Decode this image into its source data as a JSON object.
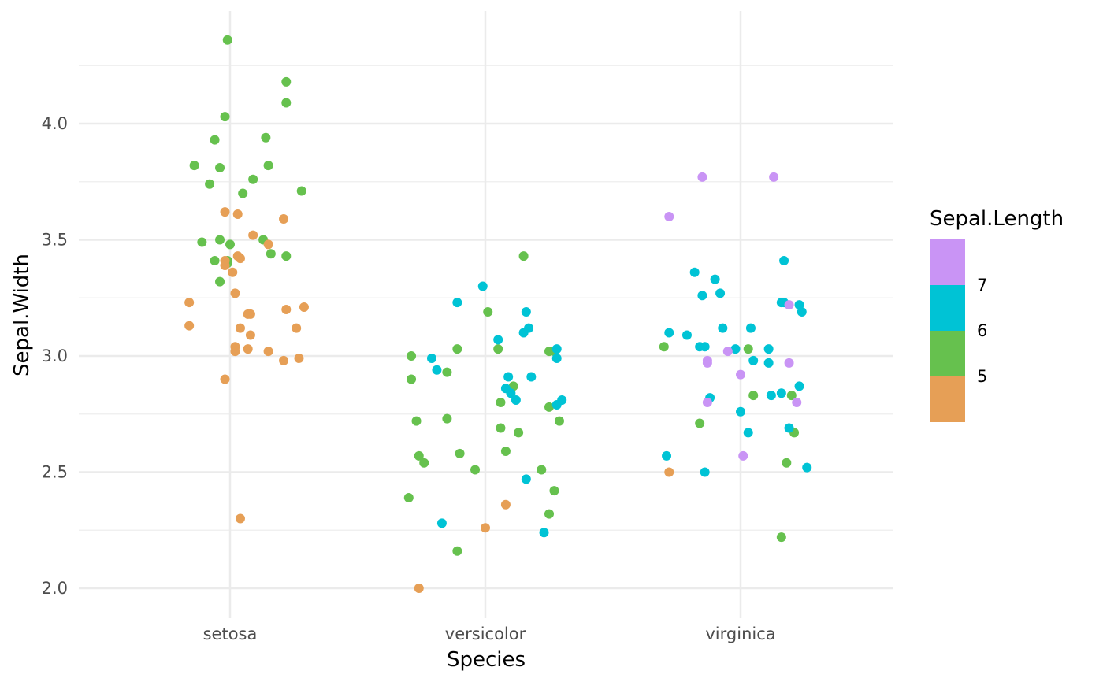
{
  "chart_data": {
    "type": "scatter",
    "jitter": true,
    "title": "",
    "xlabel": "Species",
    "ylabel": "Sepal.Width",
    "categories": [
      "setosa",
      "versicolor",
      "virginica"
    ],
    "ylim": [
      1.85,
      4.42
    ],
    "yticks": [
      2.0,
      2.5,
      3.0,
      3.5,
      4.0
    ],
    "ytick_labels": [
      "2.0",
      "2.5",
      "3.0",
      "3.5",
      "4.0"
    ],
    "grid": true,
    "theme": "minimal",
    "color": {
      "variable": "Sepal.Length",
      "legend_title": "Sepal.Length",
      "legend_position": "right",
      "bins": [
        {
          "label": "",
          "color": "#E69F56"
        },
        {
          "label": "5",
          "color": "#66C14E"
        },
        {
          "label": "6",
          "color": "#00C3D5"
        },
        {
          "label": "7",
          "color": "#C994F5"
        }
      ]
    },
    "series": [
      {
        "category": "setosa",
        "points": [
          {
            "x": 0.86,
            "y": 3.82,
            "c": "5"
          },
          {
            "x": 0.89,
            "y": 3.49,
            "c": "5"
          },
          {
            "x": 0.92,
            "y": 3.74,
            "c": "5"
          },
          {
            "x": 0.94,
            "y": 3.93,
            "c": "5"
          },
          {
            "x": 0.94,
            "y": 3.41,
            "c": "5"
          },
          {
            "x": 0.96,
            "y": 3.81,
            "c": "5"
          },
          {
            "x": 0.96,
            "y": 3.5,
            "c": "5"
          },
          {
            "x": 0.96,
            "y": 3.32,
            "c": "5"
          },
          {
            "x": 0.98,
            "y": 4.03,
            "c": "5"
          },
          {
            "x": 0.99,
            "y": 4.36,
            "c": "5"
          },
          {
            "x": 0.99,
            "y": 3.4,
            "c": "5"
          },
          {
            "x": 0.99,
            "y": 3.4,
            "c": "5"
          },
          {
            "x": 0.99,
            "y": 3.41,
            "c": "5"
          },
          {
            "x": 1.0,
            "y": 3.48,
            "c": "5"
          },
          {
            "x": 1.05,
            "y": 3.7,
            "c": "5"
          },
          {
            "x": 1.09,
            "y": 3.76,
            "c": "5"
          },
          {
            "x": 1.13,
            "y": 3.5,
            "c": "5"
          },
          {
            "x": 1.14,
            "y": 3.94,
            "c": "5"
          },
          {
            "x": 1.15,
            "y": 3.82,
            "c": "5"
          },
          {
            "x": 1.16,
            "y": 3.44,
            "c": "5"
          },
          {
            "x": 1.22,
            "y": 4.18,
            "c": "5"
          },
          {
            "x": 1.22,
            "y": 4.09,
            "c": "5"
          },
          {
            "x": 1.22,
            "y": 3.43,
            "c": "5"
          },
          {
            "x": 1.28,
            "y": 3.71,
            "c": "5"
          },
          {
            "x": 0.84,
            "y": 3.23,
            "c": "low"
          },
          {
            "x": 0.84,
            "y": 3.13,
            "c": "low"
          },
          {
            "x": 0.98,
            "y": 3.41,
            "c": "low"
          },
          {
            "x": 0.98,
            "y": 3.39,
            "c": "low"
          },
          {
            "x": 0.98,
            "y": 3.62,
            "c": "low"
          },
          {
            "x": 0.98,
            "y": 2.9,
            "c": "low"
          },
          {
            "x": 1.01,
            "y": 3.36,
            "c": "low"
          },
          {
            "x": 1.02,
            "y": 3.27,
            "c": "low"
          },
          {
            "x": 1.03,
            "y": 3.43,
            "c": "low"
          },
          {
            "x": 1.02,
            "y": 3.04,
            "c": "low"
          },
          {
            "x": 1.02,
            "y": 3.02,
            "c": "low"
          },
          {
            "x": 1.07,
            "y": 3.03,
            "c": "low"
          },
          {
            "x": 1.04,
            "y": 2.3,
            "c": "low"
          },
          {
            "x": 1.03,
            "y": 3.61,
            "c": "low"
          },
          {
            "x": 1.04,
            "y": 3.12,
            "c": "low"
          },
          {
            "x": 1.04,
            "y": 3.42,
            "c": "low"
          },
          {
            "x": 1.07,
            "y": 3.18,
            "c": "low"
          },
          {
            "x": 1.08,
            "y": 3.18,
            "c": "low"
          },
          {
            "x": 1.08,
            "y": 3.09,
            "c": "low"
          },
          {
            "x": 1.09,
            "y": 3.52,
            "c": "low"
          },
          {
            "x": 1.15,
            "y": 3.48,
            "c": "low"
          },
          {
            "x": 1.15,
            "y": 3.02,
            "c": "low"
          },
          {
            "x": 1.21,
            "y": 3.59,
            "c": "low"
          },
          {
            "x": 1.21,
            "y": 2.98,
            "c": "low"
          },
          {
            "x": 1.22,
            "y": 3.2,
            "c": "low"
          },
          {
            "x": 1.26,
            "y": 3.12,
            "c": "low"
          },
          {
            "x": 1.27,
            "y": 2.99,
            "c": "low"
          },
          {
            "x": 1.29,
            "y": 3.21,
            "c": "low"
          }
        ]
      },
      {
        "category": "versicolor",
        "points": [
          {
            "x": 1.7,
            "y": 2.39,
            "c": "5"
          },
          {
            "x": 1.71,
            "y": 3.0,
            "c": "5"
          },
          {
            "x": 1.71,
            "y": 2.9,
            "c": "5"
          },
          {
            "x": 1.73,
            "y": 2.72,
            "c": "5"
          },
          {
            "x": 1.74,
            "y": 2.57,
            "c": "5"
          },
          {
            "x": 1.76,
            "y": 2.54,
            "c": "5"
          },
          {
            "x": 1.85,
            "y": 2.93,
            "c": "5"
          },
          {
            "x": 1.85,
            "y": 2.73,
            "c": "5"
          },
          {
            "x": 1.89,
            "y": 3.03,
            "c": "5"
          },
          {
            "x": 1.89,
            "y": 2.16,
            "c": "5"
          },
          {
            "x": 1.9,
            "y": 2.58,
            "c": "5"
          },
          {
            "x": 1.96,
            "y": 2.51,
            "c": "5"
          },
          {
            "x": 2.01,
            "y": 3.19,
            "c": "5"
          },
          {
            "x": 2.05,
            "y": 3.03,
            "c": "5"
          },
          {
            "x": 2.06,
            "y": 2.69,
            "c": "5"
          },
          {
            "x": 2.06,
            "y": 2.8,
            "c": "5"
          },
          {
            "x": 2.08,
            "y": 2.59,
            "c": "5"
          },
          {
            "x": 2.11,
            "y": 2.87,
            "c": "5"
          },
          {
            "x": 2.13,
            "y": 2.67,
            "c": "5"
          },
          {
            "x": 2.15,
            "y": 3.43,
            "c": "5"
          },
          {
            "x": 2.22,
            "y": 2.51,
            "c": "5"
          },
          {
            "x": 2.25,
            "y": 3.02,
            "c": "5"
          },
          {
            "x": 2.25,
            "y": 2.78,
            "c": "5"
          },
          {
            "x": 2.25,
            "y": 2.32,
            "c": "5"
          },
          {
            "x": 2.27,
            "y": 2.42,
            "c": "5"
          },
          {
            "x": 2.27,
            "y": 3.02,
            "c": "5"
          },
          {
            "x": 2.29,
            "y": 2.72,
            "c": "5"
          },
          {
            "x": 1.79,
            "y": 2.99,
            "c": "6"
          },
          {
            "x": 1.81,
            "y": 2.94,
            "c": "6"
          },
          {
            "x": 1.83,
            "y": 2.28,
            "c": "6"
          },
          {
            "x": 1.89,
            "y": 3.23,
            "c": "6"
          },
          {
            "x": 1.99,
            "y": 3.3,
            "c": "6"
          },
          {
            "x": 2.05,
            "y": 3.07,
            "c": "6"
          },
          {
            "x": 2.08,
            "y": 2.86,
            "c": "6"
          },
          {
            "x": 2.09,
            "y": 2.91,
            "c": "6"
          },
          {
            "x": 2.1,
            "y": 2.84,
            "c": "6"
          },
          {
            "x": 2.12,
            "y": 2.81,
            "c": "6"
          },
          {
            "x": 2.15,
            "y": 3.1,
            "c": "6"
          },
          {
            "x": 2.16,
            "y": 2.47,
            "c": "6"
          },
          {
            "x": 2.16,
            "y": 3.19,
            "c": "6"
          },
          {
            "x": 2.17,
            "y": 3.12,
            "c": "6"
          },
          {
            "x": 2.18,
            "y": 2.91,
            "c": "6"
          },
          {
            "x": 2.23,
            "y": 2.24,
            "c": "6"
          },
          {
            "x": 2.28,
            "y": 3.03,
            "c": "6"
          },
          {
            "x": 2.28,
            "y": 2.99,
            "c": "6"
          },
          {
            "x": 2.28,
            "y": 2.79,
            "c": "6"
          },
          {
            "x": 2.3,
            "y": 2.81,
            "c": "6"
          },
          {
            "x": 1.74,
            "y": 2.0,
            "c": "low"
          },
          {
            "x": 2.0,
            "y": 2.26,
            "c": "low"
          },
          {
            "x": 2.08,
            "y": 2.36,
            "c": "low"
          }
        ]
      },
      {
        "category": "virginica",
        "points": [
          {
            "x": 2.7,
            "y": 3.04,
            "c": "5"
          },
          {
            "x": 2.84,
            "y": 2.71,
            "c": "5"
          },
          {
            "x": 3.03,
            "y": 3.03,
            "c": "5"
          },
          {
            "x": 3.05,
            "y": 2.83,
            "c": "5"
          },
          {
            "x": 3.16,
            "y": 2.22,
            "c": "5"
          },
          {
            "x": 3.18,
            "y": 2.54,
            "c": "5"
          },
          {
            "x": 3.2,
            "y": 2.83,
            "c": "5"
          },
          {
            "x": 3.21,
            "y": 2.67,
            "c": "5"
          },
          {
            "x": 2.71,
            "y": 2.57,
            "c": "6"
          },
          {
            "x": 2.72,
            "y": 3.1,
            "c": "6"
          },
          {
            "x": 2.79,
            "y": 3.09,
            "c": "6"
          },
          {
            "x": 2.82,
            "y": 3.36,
            "c": "6"
          },
          {
            "x": 2.84,
            "y": 3.04,
            "c": "6"
          },
          {
            "x": 2.85,
            "y": 3.26,
            "c": "6"
          },
          {
            "x": 2.86,
            "y": 2.5,
            "c": "6"
          },
          {
            "x": 2.86,
            "y": 3.04,
            "c": "6"
          },
          {
            "x": 2.88,
            "y": 2.82,
            "c": "6"
          },
          {
            "x": 2.9,
            "y": 3.33,
            "c": "6"
          },
          {
            "x": 2.92,
            "y": 3.27,
            "c": "6"
          },
          {
            "x": 2.93,
            "y": 3.12,
            "c": "6"
          },
          {
            "x": 2.98,
            "y": 3.03,
            "c": "6"
          },
          {
            "x": 3.0,
            "y": 2.76,
            "c": "6"
          },
          {
            "x": 3.03,
            "y": 2.67,
            "c": "6"
          },
          {
            "x": 3.04,
            "y": 3.12,
            "c": "6"
          },
          {
            "x": 3.05,
            "y": 2.98,
            "c": "6"
          },
          {
            "x": 3.11,
            "y": 3.03,
            "c": "6"
          },
          {
            "x": 3.11,
            "y": 2.97,
            "c": "6"
          },
          {
            "x": 3.12,
            "y": 2.83,
            "c": "6"
          },
          {
            "x": 3.16,
            "y": 3.23,
            "c": "6"
          },
          {
            "x": 3.16,
            "y": 2.84,
            "c": "6"
          },
          {
            "x": 3.17,
            "y": 3.41,
            "c": "6"
          },
          {
            "x": 3.17,
            "y": 3.23,
            "c": "6"
          },
          {
            "x": 3.19,
            "y": 2.69,
            "c": "6"
          },
          {
            "x": 3.23,
            "y": 2.87,
            "c": "6"
          },
          {
            "x": 3.23,
            "y": 3.22,
            "c": "6"
          },
          {
            "x": 3.24,
            "y": 3.19,
            "c": "6"
          },
          {
            "x": 3.26,
            "y": 2.52,
            "c": "6"
          },
          {
            "x": 2.72,
            "y": 2.5,
            "c": "low"
          },
          {
            "x": 2.72,
            "y": 3.6,
            "c": "7"
          },
          {
            "x": 2.85,
            "y": 3.77,
            "c": "7"
          },
          {
            "x": 2.87,
            "y": 2.98,
            "c": "7"
          },
          {
            "x": 2.87,
            "y": 2.97,
            "c": "7"
          },
          {
            "x": 2.87,
            "y": 2.8,
            "c": "7"
          },
          {
            "x": 2.95,
            "y": 3.02,
            "c": "7"
          },
          {
            "x": 3.0,
            "y": 2.92,
            "c": "7"
          },
          {
            "x": 3.01,
            "y": 2.57,
            "c": "7"
          },
          {
            "x": 3.13,
            "y": 3.77,
            "c": "7"
          },
          {
            "x": 3.19,
            "y": 2.97,
            "c": "7"
          },
          {
            "x": 3.19,
            "y": 3.22,
            "c": "7"
          },
          {
            "x": 3.22,
            "y": 2.8,
            "c": "7"
          }
        ]
      }
    ]
  }
}
